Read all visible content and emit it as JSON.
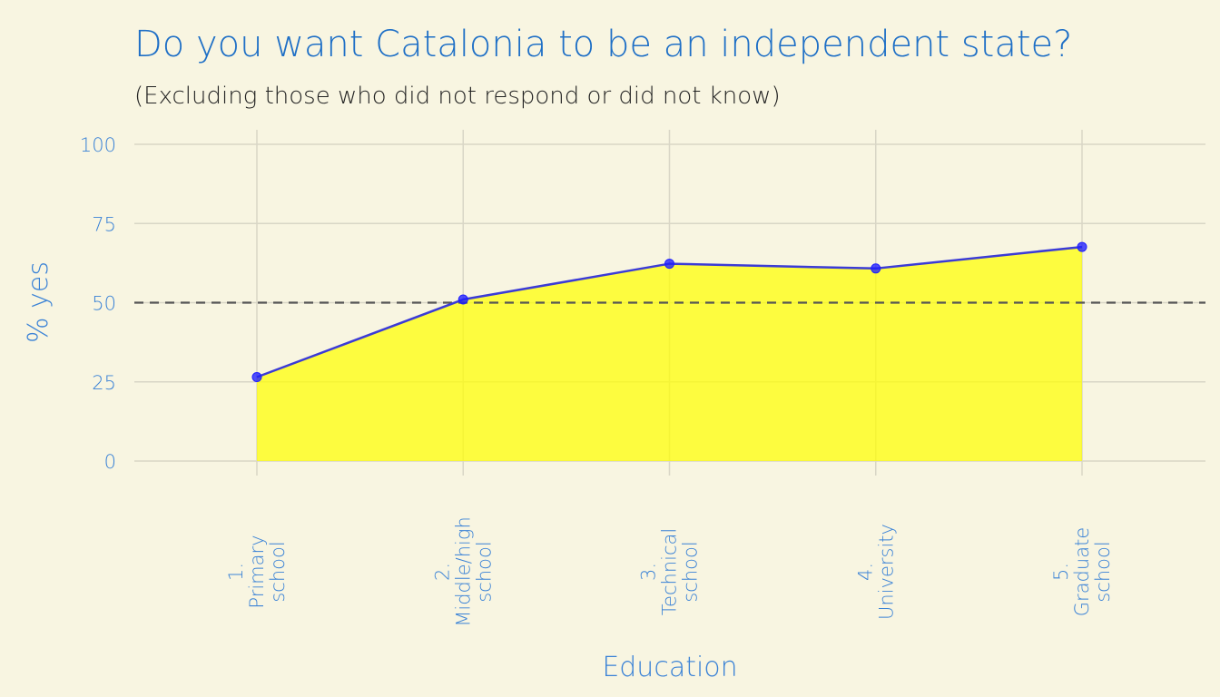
{
  "colors": {
    "background": "#f8f5e1",
    "title": "#1e6fc6",
    "subtitle": "#222222",
    "axis_text": "#3a82d6",
    "grid": "#d9d6c6",
    "area_fill": "#ffff00",
    "line": "#3b3bd6",
    "point": "#1f1fff",
    "reference_line": "#555555"
  },
  "chart_data": {
    "type": "area",
    "title": "Do you want Catalonia to be an independent state?",
    "subtitle": "(Excluding those who did not respond or did not know)",
    "xlabel": "Education",
    "ylabel": "% yes",
    "categories": [
      [
        "1.",
        "Primary",
        "school"
      ],
      [
        "2.",
        "Middle/high",
        "school"
      ],
      [
        "3.",
        "Technical",
        "school"
      ],
      [
        "4.",
        "University"
      ],
      [
        "5.",
        "Graduate",
        "school"
      ]
    ],
    "values": [
      26.5,
      51.0,
      62.3,
      60.8,
      67.6
    ],
    "ylim": [
      0,
      100
    ],
    "yticks": [
      0,
      25,
      50,
      75,
      100
    ],
    "reference_line": 50,
    "grid": true,
    "legend": "none"
  }
}
